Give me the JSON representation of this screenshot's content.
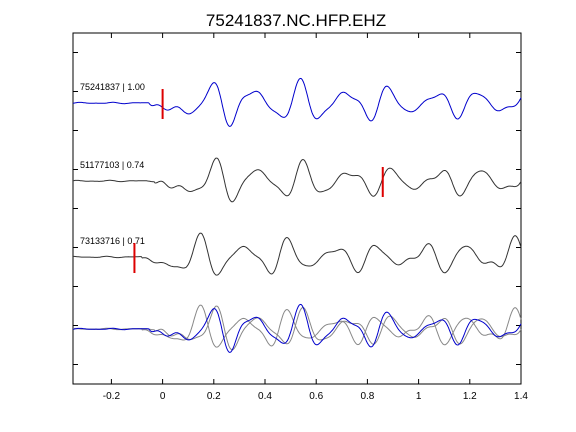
{
  "chart_data": {
    "type": "line",
    "title": "75241837.NC.HFP.EHZ",
    "xlabel": "",
    "ylabel": "",
    "xlim": [
      -0.35,
      1.4
    ],
    "x_ticks": [
      -0.2,
      0,
      0.2,
      0.4,
      0.6,
      0.8,
      1,
      1.2,
      1.4
    ],
    "x_tick_labels": [
      "-0.2",
      "0",
      "0.2",
      "0.4",
      "0.6",
      "0.8",
      "1",
      "1.2",
      "1.4"
    ],
    "grid": false,
    "y_ticks_unlabeled": 9,
    "colors": {
      "master": "#0000cc",
      "other": "#333333",
      "overlay_other": "#888888",
      "pick": "#dd0000",
      "axes": "#000000"
    },
    "traces": [
      {
        "label": "75241837 | 1.00",
        "color": "#0000cc",
        "pick_time": 0.0,
        "onset": -0.05,
        "amplitude": 1.0,
        "phase": 0.0
      },
      {
        "label": "51177103 | 0.74",
        "color": "#333333",
        "pick_time": 0.86,
        "onset": -0.03,
        "amplitude": 0.95,
        "phase": 0.6
      },
      {
        "label": "73133716 | 0.71",
        "color": "#333333",
        "pick_time": -0.11,
        "onset": -0.08,
        "amplitude": 0.95,
        "phase": 1.2
      }
    ],
    "overlay": {
      "description_index": 3
    }
  }
}
